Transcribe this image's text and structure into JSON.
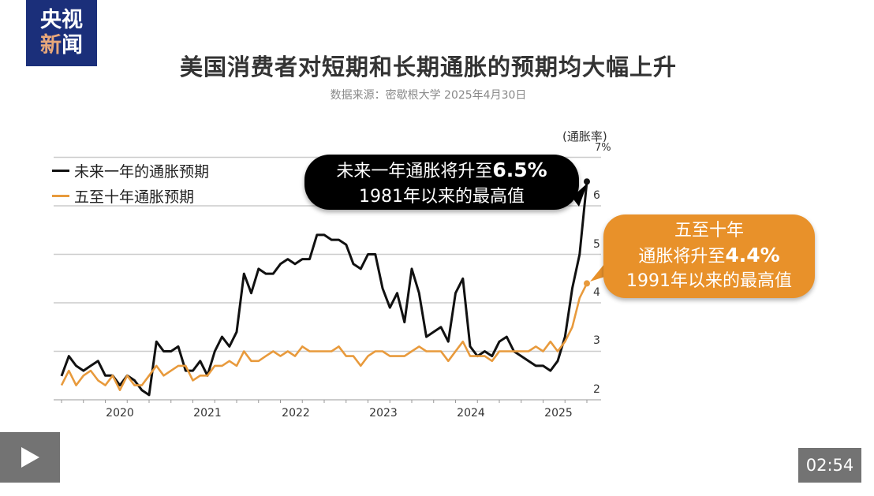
{
  "logo": {
    "line1": "央视",
    "line2a": "新",
    "line2b": "闻"
  },
  "chart_data": {
    "type": "line",
    "title": "美国消费者对短期和长期通胀的预期均大幅上升",
    "subtitle": "数据来源：密歇根大学  2025年4月30日",
    "ylabel": "(通胀率)",
    "ylim": [
      2,
      7
    ],
    "yticks": [
      "2",
      "3",
      "4",
      "5",
      "6",
      "7%"
    ],
    "xticks": [
      "2020",
      "2021",
      "2022",
      "2023",
      "2024",
      "2025"
    ],
    "x_start": "2019-05",
    "x_end": "2025-05",
    "grid": true,
    "legend_position": "top-left",
    "series": [
      {
        "name": "未来一年的通胀预期",
        "color": "#111111",
        "values": [
          2.49,
          2.9,
          2.7,
          2.6,
          2.7,
          2.8,
          2.5,
          2.5,
          2.3,
          2.5,
          2.4,
          2.2,
          2.1,
          3.2,
          3.0,
          3.0,
          3.1,
          2.6,
          2.6,
          2.8,
          2.5,
          3.0,
          3.3,
          3.1,
          3.4,
          4.6,
          4.2,
          4.7,
          4.6,
          4.6,
          4.8,
          4.9,
          4.8,
          4.9,
          4.9,
          5.4,
          5.4,
          5.3,
          5.3,
          5.2,
          4.8,
          4.7,
          5.0,
          5.0,
          4.3,
          3.9,
          4.2,
          3.6,
          4.7,
          4.2,
          3.3,
          3.4,
          3.5,
          3.2,
          4.2,
          4.5,
          3.1,
          2.9,
          3.0,
          2.9,
          3.2,
          3.3,
          3.0,
          2.9,
          2.8,
          2.7,
          2.7,
          2.6,
          2.8,
          3.3,
          4.3,
          5.0,
          6.5
        ]
      },
      {
        "name": "五至十年通胀预期",
        "color": "#e89a3c",
        "values": [
          2.3,
          2.6,
          2.3,
          2.5,
          2.6,
          2.4,
          2.3,
          2.5,
          2.2,
          2.5,
          2.3,
          2.3,
          2.5,
          2.7,
          2.5,
          2.6,
          2.7,
          2.7,
          2.4,
          2.5,
          2.5,
          2.7,
          2.7,
          2.8,
          2.7,
          3.0,
          2.8,
          2.8,
          2.9,
          3.0,
          2.9,
          3.0,
          2.9,
          3.1,
          3.0,
          3.0,
          3.0,
          3.0,
          3.1,
          2.9,
          2.9,
          2.7,
          2.9,
          3.0,
          3.0,
          2.9,
          2.9,
          2.9,
          3.0,
          3.1,
          3.0,
          3.0,
          3.0,
          2.8,
          3.0,
          3.2,
          2.9,
          2.9,
          2.9,
          2.8,
          3.0,
          3.0,
          3.0,
          3.0,
          3.0,
          3.1,
          3.0,
          3.2,
          3.0,
          3.2,
          3.5,
          4.1,
          4.4
        ]
      }
    ],
    "annotations": [
      {
        "line1_prefix": "未来一年通胀将升至",
        "value": "6.5%",
        "line2": "1981年以来的最高值"
      },
      {
        "line1": "五至十年",
        "line2_prefix": "通胀将升至",
        "value": "4.4%",
        "line3": "1991年以来的最高值"
      }
    ]
  },
  "player": {
    "time": "02:54",
    "accent": "#e8912a"
  }
}
